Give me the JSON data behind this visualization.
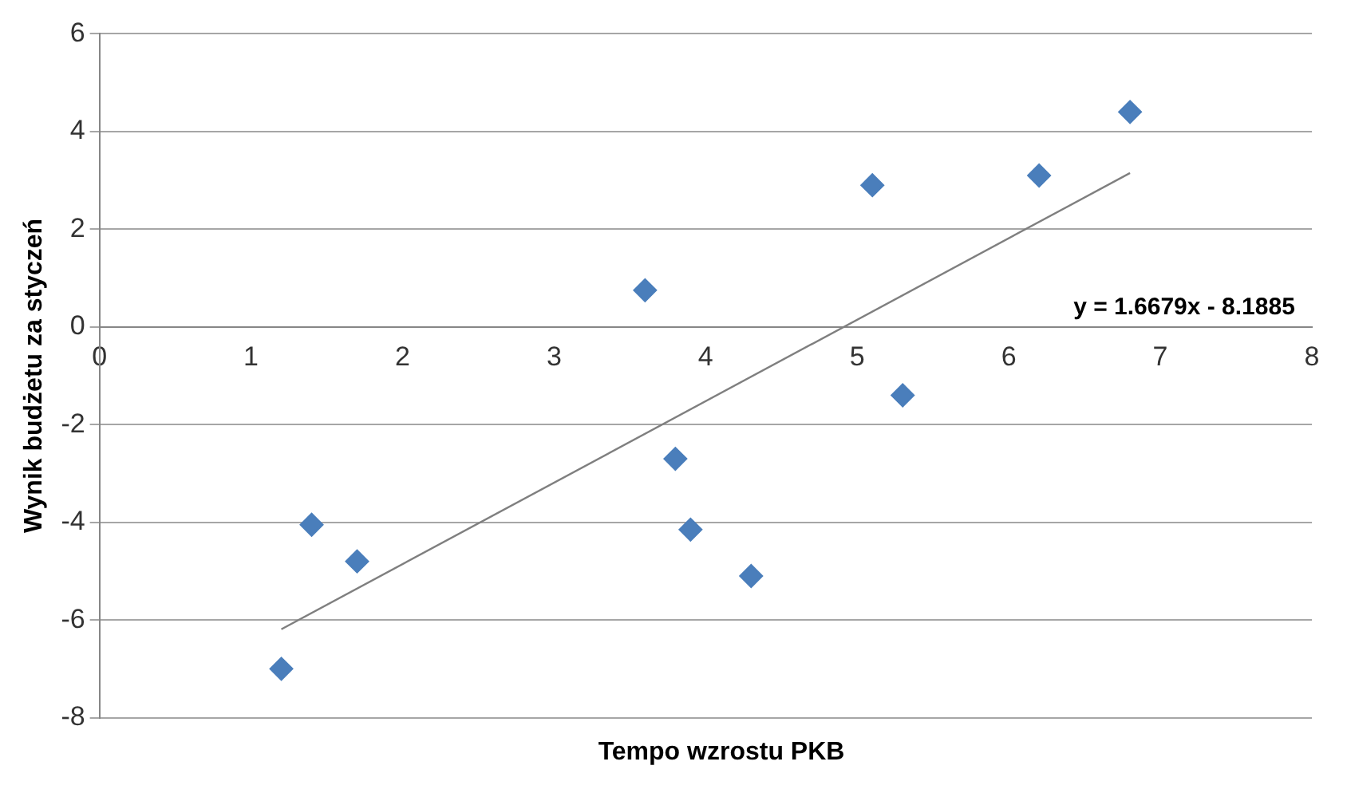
{
  "chart_data": {
    "type": "scatter",
    "xlabel": "Tempo wzrostu PKB",
    "ylabel": "Wynik budżetu za styczeń",
    "xlim": [
      0,
      8
    ],
    "xticks": [
      0,
      1,
      2,
      3,
      4,
      5,
      6,
      7,
      8
    ],
    "ylim": [
      -8,
      6
    ],
    "yticks": [
      -8,
      -6,
      -4,
      -2,
      0,
      2,
      4,
      6
    ],
    "grid": "y",
    "legend": false,
    "marker": "diamond",
    "series": [
      {
        "color": "#4a7ebb",
        "x": [
          1.2,
          1.4,
          1.7,
          3.6,
          3.8,
          3.9,
          4.3,
          5.1,
          5.3,
          6.2,
          6.8
        ],
        "values": [
          -7.0,
          -4.05,
          -4.8,
          0.75,
          -2.7,
          -4.15,
          -5.1,
          2.9,
          -1.4,
          3.1,
          4.4
        ]
      },
      {
        "type": "line",
        "color": "#7f7f7f",
        "marker": "none",
        "line_style": "solid",
        "x": [
          1.2,
          6.8
        ],
        "values": [
          -6.19,
          3.15
        ]
      }
    ],
    "annotations": [
      "y = 1.6679x - 8.1885"
    ]
  }
}
